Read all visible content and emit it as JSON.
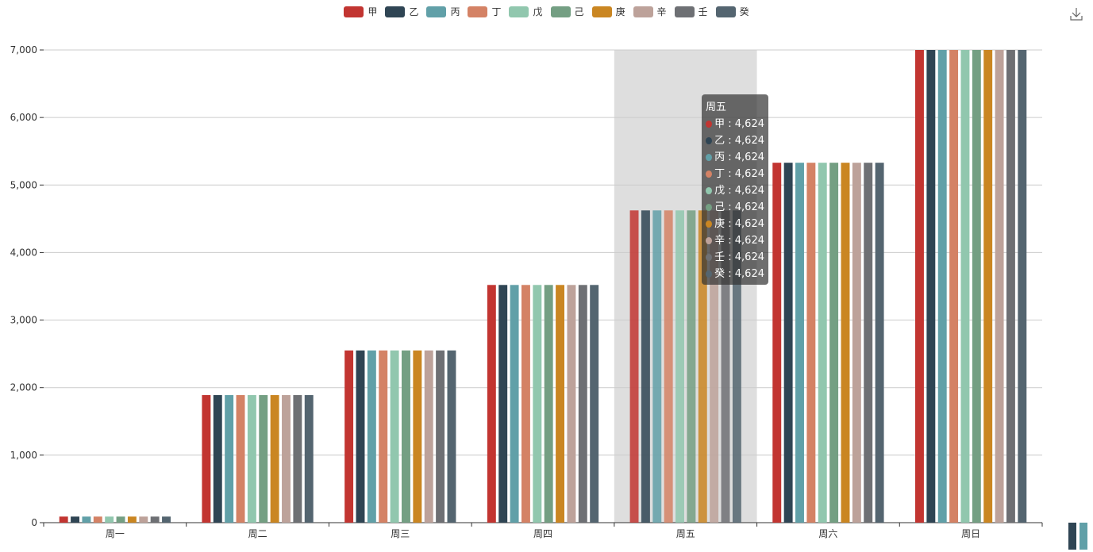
{
  "chart_data": {
    "type": "bar",
    "categories": [
      "周一",
      "周二",
      "周三",
      "周四",
      "周五",
      "周六",
      "周日"
    ],
    "series": [
      {
        "name": "甲",
        "color": "#c23531",
        "values": [
          90,
          1890,
          2550,
          3520,
          4624,
          5330,
          7000
        ]
      },
      {
        "name": "乙",
        "color": "#2f4554",
        "values": [
          90,
          1890,
          2550,
          3520,
          4624,
          5330,
          7000
        ]
      },
      {
        "name": "丙",
        "color": "#61a0a8",
        "values": [
          90,
          1890,
          2550,
          3520,
          4624,
          5330,
          7000
        ]
      },
      {
        "name": "丁",
        "color": "#d48265",
        "values": [
          90,
          1890,
          2550,
          3520,
          4624,
          5330,
          7000
        ]
      },
      {
        "name": "戊",
        "color": "#91c7ae",
        "values": [
          90,
          1890,
          2550,
          3520,
          4624,
          5330,
          7000
        ]
      },
      {
        "name": "己",
        "color": "#749f83",
        "values": [
          90,
          1890,
          2550,
          3520,
          4624,
          5330,
          7000
        ]
      },
      {
        "name": "庚",
        "color": "#ca8622",
        "values": [
          90,
          1890,
          2550,
          3520,
          4624,
          5330,
          7000
        ]
      },
      {
        "name": "辛",
        "color": "#bda29a",
        "values": [
          90,
          1890,
          2550,
          3520,
          4624,
          5330,
          7000
        ]
      },
      {
        "name": "壬",
        "color": "#6e7074",
        "values": [
          90,
          1890,
          2550,
          3520,
          4624,
          5330,
          7000
        ]
      },
      {
        "name": "癸",
        "color": "#546570",
        "values": [
          90,
          1890,
          2550,
          3520,
          4624,
          5330,
          7000
        ]
      }
    ],
    "yticks": [
      "0",
      "1,000",
      "2,000",
      "3,000",
      "4,000",
      "5,000",
      "6,000",
      "7,000"
    ],
    "ylim": [
      0,
      7000
    ],
    "grid": true,
    "legend_position": "top-center",
    "highlighted_category": "周五"
  },
  "tooltip": {
    "title": "周五",
    "value_text": "4,624"
  }
}
